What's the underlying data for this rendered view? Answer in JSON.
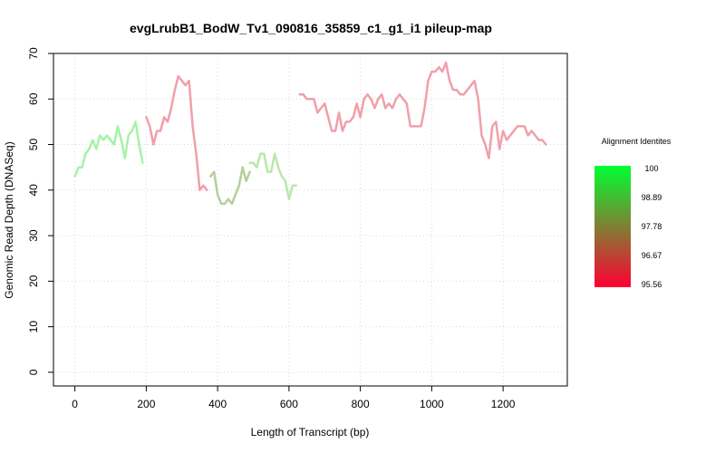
{
  "chart_data": {
    "type": "line",
    "title": "evgLrubB1_BodW_Tv1_090816_35859_c1_g1_i1 pileup-map",
    "xlabel": "Length of Transcript (bp)",
    "ylabel": "Genomic Read Depth (DNASeq)",
    "xlim": [
      -60,
      1380
    ],
    "ylim": [
      -3,
      70
    ],
    "xticks": [
      0,
      200,
      400,
      600,
      800,
      1000,
      1200
    ],
    "yticks": [
      0,
      10,
      20,
      30,
      40,
      50,
      60,
      70
    ],
    "grid": true,
    "series": [
      {
        "identity": 100,
        "color": "#a6f2a6",
        "x": [
          0,
          10,
          20,
          30,
          40,
          50,
          60,
          70,
          80,
          90,
          100,
          110,
          120,
          130,
          140,
          150,
          160,
          170,
          180,
          190
        ],
        "y": [
          43,
          45,
          45,
          48,
          49,
          51,
          49,
          52,
          51,
          52,
          51,
          50,
          54,
          51,
          47,
          52,
          53,
          55,
          50,
          46
        ]
      },
      {
        "identity": 95.56,
        "color": "#f0a0aa",
        "x": [
          200,
          210,
          220,
          230,
          240,
          250,
          260,
          270,
          280,
          290,
          300,
          310,
          320,
          330,
          340,
          350,
          360,
          370
        ],
        "y": [
          56,
          54,
          50,
          53,
          53,
          56,
          55,
          58,
          62,
          65,
          64,
          63,
          64,
          54,
          48,
          40,
          41,
          40
        ]
      },
      {
        "identity": 97.5,
        "color": "#b6cf9a",
        "x": [
          380,
          390,
          400,
          410,
          420,
          430,
          440,
          450,
          460,
          470,
          480,
          490
        ],
        "y": [
          43,
          44,
          39,
          37,
          37,
          38,
          37,
          39,
          41,
          45,
          42,
          44
        ]
      },
      {
        "identity": 99.5,
        "color": "#b9e8a9",
        "x": [
          490,
          500,
          510,
          520,
          530,
          540,
          550,
          560,
          570,
          580,
          590,
          600,
          610,
          620
        ],
        "y": [
          46,
          46,
          45,
          48,
          48,
          44,
          44,
          48,
          45,
          43,
          42,
          38,
          41,
          41
        ]
      },
      {
        "identity": 95.56,
        "color": "#f0a0aa",
        "x": [
          630,
          640,
          650,
          660,
          670,
          680,
          690,
          700,
          710,
          720,
          730,
          740,
          750,
          760,
          770,
          780,
          790,
          800,
          810,
          820,
          830,
          840,
          850,
          860,
          870,
          880,
          890,
          900,
          910,
          920,
          930,
          940,
          950,
          960,
          970,
          980,
          990,
          1000,
          1010,
          1020,
          1030,
          1040,
          1050,
          1060,
          1070,
          1080,
          1090,
          1100,
          1110,
          1120,
          1130,
          1140,
          1150,
          1160,
          1170,
          1180,
          1190,
          1200,
          1210,
          1220,
          1230,
          1240,
          1250,
          1260,
          1270,
          1280,
          1290,
          1300,
          1310,
          1320
        ],
        "y": [
          61,
          61,
          60,
          60,
          60,
          57,
          58,
          59,
          56,
          53,
          53,
          57,
          53,
          55,
          55,
          56,
          59,
          56,
          60,
          61,
          60,
          58,
          60,
          61,
          58,
          59,
          58,
          60,
          61,
          60,
          59,
          54,
          54,
          54,
          54,
          58,
          64,
          66,
          66,
          67,
          66,
          68,
          64,
          62,
          62,
          61,
          61,
          62,
          63,
          64,
          60,
          52,
          50,
          47,
          54,
          55,
          49,
          53,
          51,
          52,
          53,
          54,
          54,
          54,
          52,
          53,
          52,
          51,
          51,
          50
        ]
      }
    ],
    "legend": {
      "title": "Alignment Identites",
      "placement": "right",
      "colors": [
        "#00ff33",
        "#ff0033"
      ],
      "labels": [
        "100",
        "98.89",
        "97.78",
        "96.67",
        "95.56"
      ]
    }
  }
}
